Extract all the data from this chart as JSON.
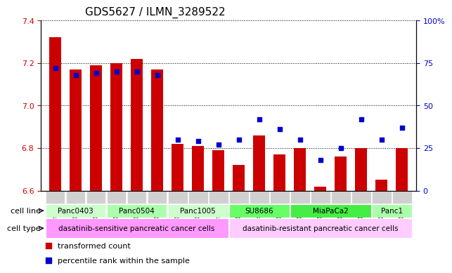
{
  "title": "GDS5627 / ILMN_3289522",
  "samples": [
    "GSM1435684",
    "GSM1435685",
    "GSM1435686",
    "GSM1435687",
    "GSM1435688",
    "GSM1435689",
    "GSM1435690",
    "GSM1435691",
    "GSM1435692",
    "GSM1435693",
    "GSM1435694",
    "GSM1435695",
    "GSM1435696",
    "GSM1435697",
    "GSM1435698",
    "GSM1435699",
    "GSM1435700",
    "GSM1435701"
  ],
  "bar_values": [
    7.32,
    7.17,
    7.19,
    7.2,
    7.22,
    7.17,
    6.82,
    6.81,
    6.79,
    6.72,
    6.86,
    6.77,
    6.8,
    6.62,
    6.76,
    6.8,
    6.65,
    6.8
  ],
  "percentile_values": [
    72,
    68,
    69,
    70,
    70,
    68,
    30,
    29,
    27,
    30,
    42,
    36,
    30,
    18,
    25,
    42,
    30,
    37
  ],
  "bar_color": "#cc0000",
  "percentile_color": "#0000cc",
  "ylim_left": [
    6.6,
    7.4
  ],
  "ylim_right": [
    0,
    100
  ],
  "yticks_left": [
    6.6,
    6.8,
    7.0,
    7.2,
    7.4
  ],
  "yticks_right": [
    0,
    25,
    50,
    75,
    100
  ],
  "ytick_labels_right": [
    "0",
    "25",
    "50",
    "75",
    "100%"
  ],
  "bar_width": 0.6,
  "cell_lines": [
    {
      "label": "Panc0403",
      "start": 0,
      "end": 2,
      "color": "#ccffcc"
    },
    {
      "label": "Panc0504",
      "start": 3,
      "end": 5,
      "color": "#aaffaa"
    },
    {
      "label": "Panc1005",
      "start": 6,
      "end": 8,
      "color": "#ccffcc"
    },
    {
      "label": "SU8686",
      "start": 9,
      "end": 11,
      "color": "#66ff66"
    },
    {
      "label": "MiaPaCa2",
      "start": 12,
      "end": 15,
      "color": "#44ee44"
    },
    {
      "label": "Panc1",
      "start": 16,
      "end": 17,
      "color": "#aaffaa"
    }
  ],
  "cell_types": [
    {
      "label": "dasatinib-sensitive pancreatic cancer cells",
      "start": 0,
      "end": 8,
      "color": "#ff99ff"
    },
    {
      "label": "dasatinib-resistant pancreatic cancer cells",
      "start": 9,
      "end": 17,
      "color": "#ffccff"
    }
  ],
  "legend_items": [
    {
      "label": "transformed count",
      "color": "#cc0000",
      "marker": "s"
    },
    {
      "label": "percentile rank within the sample",
      "color": "#0000cc",
      "marker": "s"
    }
  ]
}
